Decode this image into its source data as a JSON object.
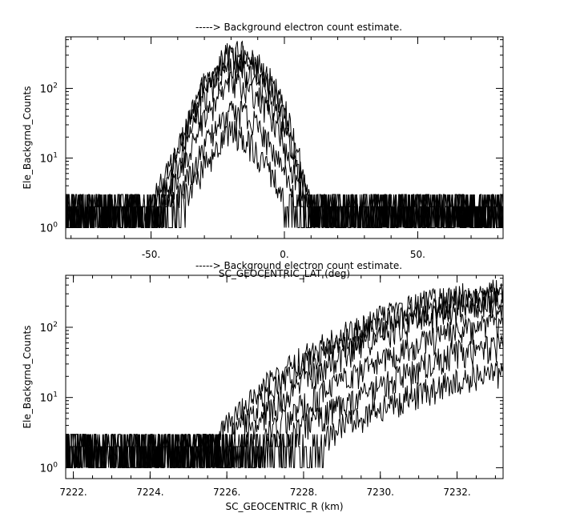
{
  "chart_data": [
    {
      "type": "line",
      "title": "-----> Background electron count estimate.",
      "xlabel": "SC_GEOCENTRIC_LAT (deg)",
      "ylabel": "Ele_Backgrnd_Counts",
      "xlim": [
        -82,
        82
      ],
      "ylim": [
        0.7,
        550
      ],
      "yscale": "log",
      "x_ticks": [
        -50,
        0,
        50
      ],
      "x_tick_labels": [
        "-50.",
        "0.",
        "50."
      ],
      "y_ticks": [
        1,
        10,
        100
      ],
      "y_tick_labels": [
        "10^0",
        "10^1",
        "10^2"
      ],
      "grid": false,
      "series": [
        {
          "x": [
            -80,
            -60,
            -50,
            -45,
            -40,
            -35,
            -30,
            -25,
            -20,
            -15,
            -10,
            -5,
            0,
            5,
            10,
            20,
            40,
            60,
            80
          ],
          "values": [
            2,
            2,
            2.5,
            5,
            14,
            45,
            120,
            230,
            360,
            330,
            230,
            130,
            55,
            12,
            2.5,
            2,
            2,
            2,
            2
          ]
        },
        {
          "x": [
            -80,
            -60,
            -50,
            -45,
            -40,
            -35,
            -30,
            -25,
            -20,
            -15,
            -10,
            -5,
            0,
            5,
            10,
            20,
            40,
            60,
            80
          ],
          "values": [
            2,
            2,
            2,
            4,
            12,
            40,
            110,
            200,
            300,
            280,
            190,
            100,
            40,
            9,
            2,
            2,
            2,
            2,
            2
          ]
        },
        {
          "x": [
            -80,
            -60,
            -50,
            -45,
            -40,
            -35,
            -30,
            -25,
            -20,
            -15,
            -10,
            -5,
            0,
            5,
            10,
            20,
            40,
            60,
            80
          ],
          "values": [
            2,
            2,
            2,
            3,
            8,
            25,
            70,
            140,
            210,
            190,
            130,
            65,
            25,
            6,
            2,
            2,
            2,
            2,
            2
          ]
        },
        {
          "x": [
            -80,
            -60,
            -50,
            -45,
            -40,
            -35,
            -30,
            -25,
            -20,
            -15,
            -10,
            -5,
            0,
            5,
            10,
            20,
            40,
            60,
            80
          ],
          "values": [
            1.5,
            1.5,
            2,
            2.5,
            5,
            15,
            35,
            70,
            120,
            110,
            80,
            40,
            15,
            4,
            2,
            1.5,
            1.5,
            1.5,
            1.5
          ]
        },
        {
          "x": [
            -80,
            -60,
            -50,
            -45,
            -40,
            -35,
            -30,
            -25,
            -20,
            -15,
            -10,
            -5,
            0,
            5,
            10,
            20,
            40,
            60,
            80
          ],
          "values": [
            1.5,
            1.5,
            1.5,
            2,
            3,
            6,
            15,
            30,
            50,
            45,
            30,
            15,
            6,
            2,
            1.5,
            1.5,
            1.5,
            1.5,
            1.5
          ]
        },
        {
          "x": [
            -80,
            -60,
            -50,
            -45,
            -40,
            -35,
            -30,
            -25,
            -20,
            -15,
            -10,
            -5,
            0,
            5,
            10,
            20,
            40,
            60,
            80
          ],
          "values": [
            1,
            1,
            1,
            1.5,
            2,
            4,
            8,
            15,
            25,
            20,
            12,
            6,
            3,
            1.5,
            1,
            1,
            1,
            1,
            1
          ]
        }
      ]
    },
    {
      "type": "line",
      "title": "-----> Background electron count estimate.",
      "xlabel": "SC_GEOCENTRIC_R (km)",
      "ylabel": "Ele_Backgrnd_Counts",
      "xlim": [
        7221.8,
        7233.2
      ],
      "ylim": [
        0.7,
        550
      ],
      "yscale": "log",
      "x_ticks": [
        7222,
        7224,
        7226,
        7228,
        7230,
        7232
      ],
      "x_tick_labels": [
        "7222.",
        "7224.",
        "7226.",
        "7228.",
        "7230.",
        "7232."
      ],
      "y_ticks": [
        1,
        10,
        100
      ],
      "y_tick_labels": [
        "10^0",
        "10^1",
        "10^2"
      ],
      "grid": false,
      "series": [
        {
          "x": [
            7221.8,
            7223,
            7224,
            7225,
            7225.5,
            7226,
            7226.5,
            7227,
            7227.5,
            7228,
            7229,
            7230,
            7231,
            7232,
            7233.2
          ],
          "values": [
            1,
            1,
            1,
            1.5,
            2,
            4,
            8,
            15,
            25,
            40,
            80,
            140,
            220,
            300,
            350
          ]
        },
        {
          "x": [
            7221.8,
            7223,
            7224,
            7225,
            7225.5,
            7226,
            7226.5,
            7227,
            7227.5,
            7228,
            7229,
            7230,
            7231,
            7232,
            7233.2
          ],
          "values": [
            1,
            1,
            1,
            1,
            1.5,
            2.5,
            5,
            10,
            18,
            30,
            60,
            110,
            170,
            230,
            270
          ]
        },
        {
          "x": [
            7221.8,
            7223,
            7224,
            7225,
            7225.5,
            7226,
            7226.5,
            7227,
            7227.5,
            7228,
            7229,
            7230,
            7231,
            7232,
            7233.2
          ],
          "values": [
            1,
            1,
            1,
            1,
            1,
            1.5,
            3,
            6,
            10,
            18,
            40,
            80,
            130,
            180,
            210
          ]
        },
        {
          "x": [
            7221.8,
            7223,
            7224,
            7225,
            7225.5,
            7226,
            7226.5,
            7227,
            7227.5,
            7228,
            7229,
            7230,
            7231,
            7232,
            7233.2
          ],
          "values": [
            1,
            1,
            1,
            1,
            1,
            1,
            2,
            3,
            5,
            8,
            18,
            35,
            60,
            90,
            110
          ]
        },
        {
          "x": [
            7221.8,
            7223,
            7224,
            7225,
            7225.5,
            7226,
            7226.5,
            7227,
            7227.5,
            7228,
            7229,
            7230,
            7231,
            7232,
            7233.2
          ],
          "values": [
            1,
            1,
            1,
            1,
            1,
            1,
            1,
            1.5,
            2.5,
            4,
            8,
            15,
            28,
            45,
            60
          ]
        },
        {
          "x": [
            7221.8,
            7223,
            7224,
            7225,
            7225.5,
            7226,
            7226.5,
            7227,
            7227.5,
            7228,
            7229,
            7230,
            7231,
            7232,
            7233.2
          ],
          "values": [
            1,
            1,
            1,
            1,
            1,
            1,
            1,
            1,
            1.5,
            2,
            4,
            7,
            12,
            18,
            25
          ]
        }
      ]
    }
  ]
}
